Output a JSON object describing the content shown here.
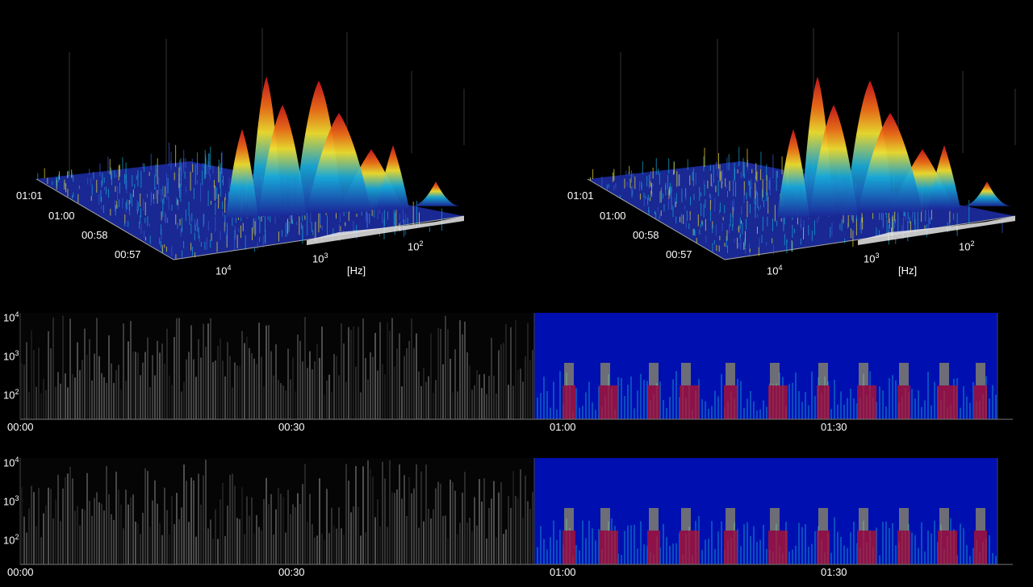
{
  "colors": {
    "background": "#000000",
    "surface_peak": "#c8141e",
    "surface_low": "#1a2a9a",
    "surface_mid": "#18a8d8",
    "surface_hi": "#f0e030",
    "spectrogram_bg": "#0010b0",
    "gray_region": "#9a9a9a"
  },
  "chart_data": [
    {
      "type": "area",
      "name": "3d-spectrum-left",
      "time_ticks": [
        "01:01",
        "01:00",
        "00:58",
        "00:57"
      ],
      "freq_ticks": [
        {
          "base": "10",
          "exp": "4"
        },
        {
          "base": "10",
          "exp": "3"
        },
        {
          "base": "10",
          "exp": "2"
        }
      ],
      "freq_unit": "[Hz]"
    },
    {
      "type": "area",
      "name": "3d-spectrum-right",
      "time_ticks": [
        "01:01",
        "01:00",
        "00:58",
        "00:57"
      ],
      "freq_ticks": [
        {
          "base": "10",
          "exp": "4"
        },
        {
          "base": "10",
          "exp": "3"
        },
        {
          "base": "10",
          "exp": "2"
        }
      ],
      "freq_unit": "[Hz]"
    },
    {
      "type": "heatmap",
      "name": "spectrogram-top",
      "y_ticks": [
        {
          "base": "10",
          "exp": "4"
        },
        {
          "base": "10",
          "exp": "3"
        },
        {
          "base": "10",
          "exp": "2"
        }
      ],
      "x_ticks": [
        "00:00",
        "00:30",
        "01:00",
        "01:30"
      ],
      "colored_from": "00:56"
    },
    {
      "type": "heatmap",
      "name": "spectrogram-bottom",
      "y_ticks": [
        {
          "base": "10",
          "exp": "4"
        },
        {
          "base": "10",
          "exp": "3"
        },
        {
          "base": "10",
          "exp": "2"
        }
      ],
      "x_ticks": [
        "00:00",
        "00:30",
        "01:00",
        "01:30"
      ],
      "colored_from": "00:56"
    }
  ]
}
